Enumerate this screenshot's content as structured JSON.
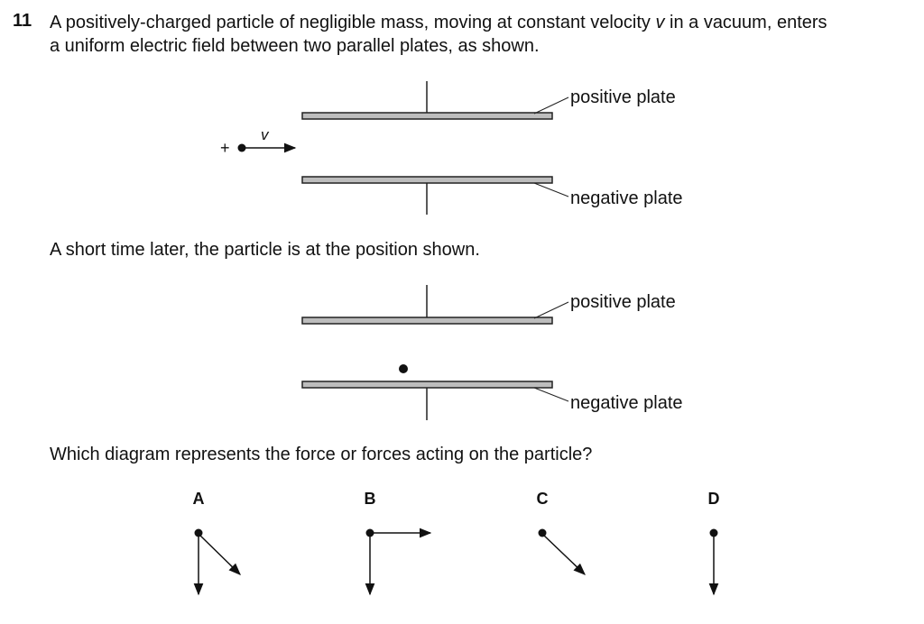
{
  "question": {
    "number": "11",
    "intro_line1_a": "A positively-charged particle of negligible mass, moving at constant velocity ",
    "intro_line1_v": "v",
    "intro_line1_b": " in a vacuum, enters",
    "intro_line2": "a uniform electric field between two parallel plates, as shown.",
    "later_text": "A short time later, the particle is at the position shown.",
    "prompt": "Which diagram represents the force or forces acting on the particle?"
  },
  "figure1": {
    "positive_label": "positive plate",
    "negative_label": "negative plate",
    "charge_sign": "+",
    "velocity_label": "v"
  },
  "figure2": {
    "positive_label": "positive plate",
    "negative_label": "negative plate"
  },
  "options": {
    "a": "A",
    "b": "B",
    "c": "C",
    "d": "D"
  }
}
